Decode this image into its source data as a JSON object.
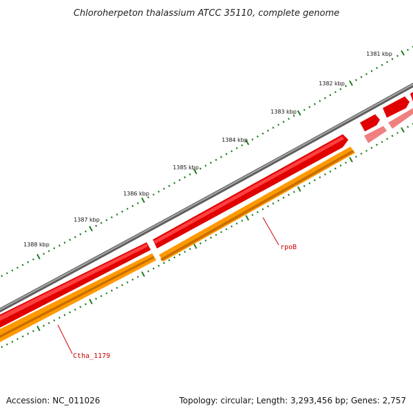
{
  "title": "Chloroherpeton thalassium ATCC 35110, complete genome",
  "ticks": {
    "unit": "kbp",
    "labels": [
      "1381 kbp",
      "1382 kbp",
      "1383 kbp",
      "1384 kbp",
      "1385 kbp",
      "1386 kbp",
      "1387 kbp",
      "1388 kbp"
    ]
  },
  "genes": [
    {
      "label": "rpoB",
      "strand": "forward",
      "color": "#ff0000"
    },
    {
      "label": "Ctha_1179",
      "strand": "reverse",
      "color": "#ff8c00"
    }
  ],
  "colors": {
    "backbone": "#808080",
    "forward_gene": "#ff0000",
    "forward_gene_faded": "#f08080",
    "reverse_gene": "#ff9900",
    "ticks": "#1a7a1a",
    "label_text": "#cc0000",
    "leader_line": "#cc0000"
  },
  "footer": {
    "accession": "Accession: NC_011026",
    "summary": "Topology: circular; Length: 3,293,456 bp; Genes: 2,757"
  }
}
